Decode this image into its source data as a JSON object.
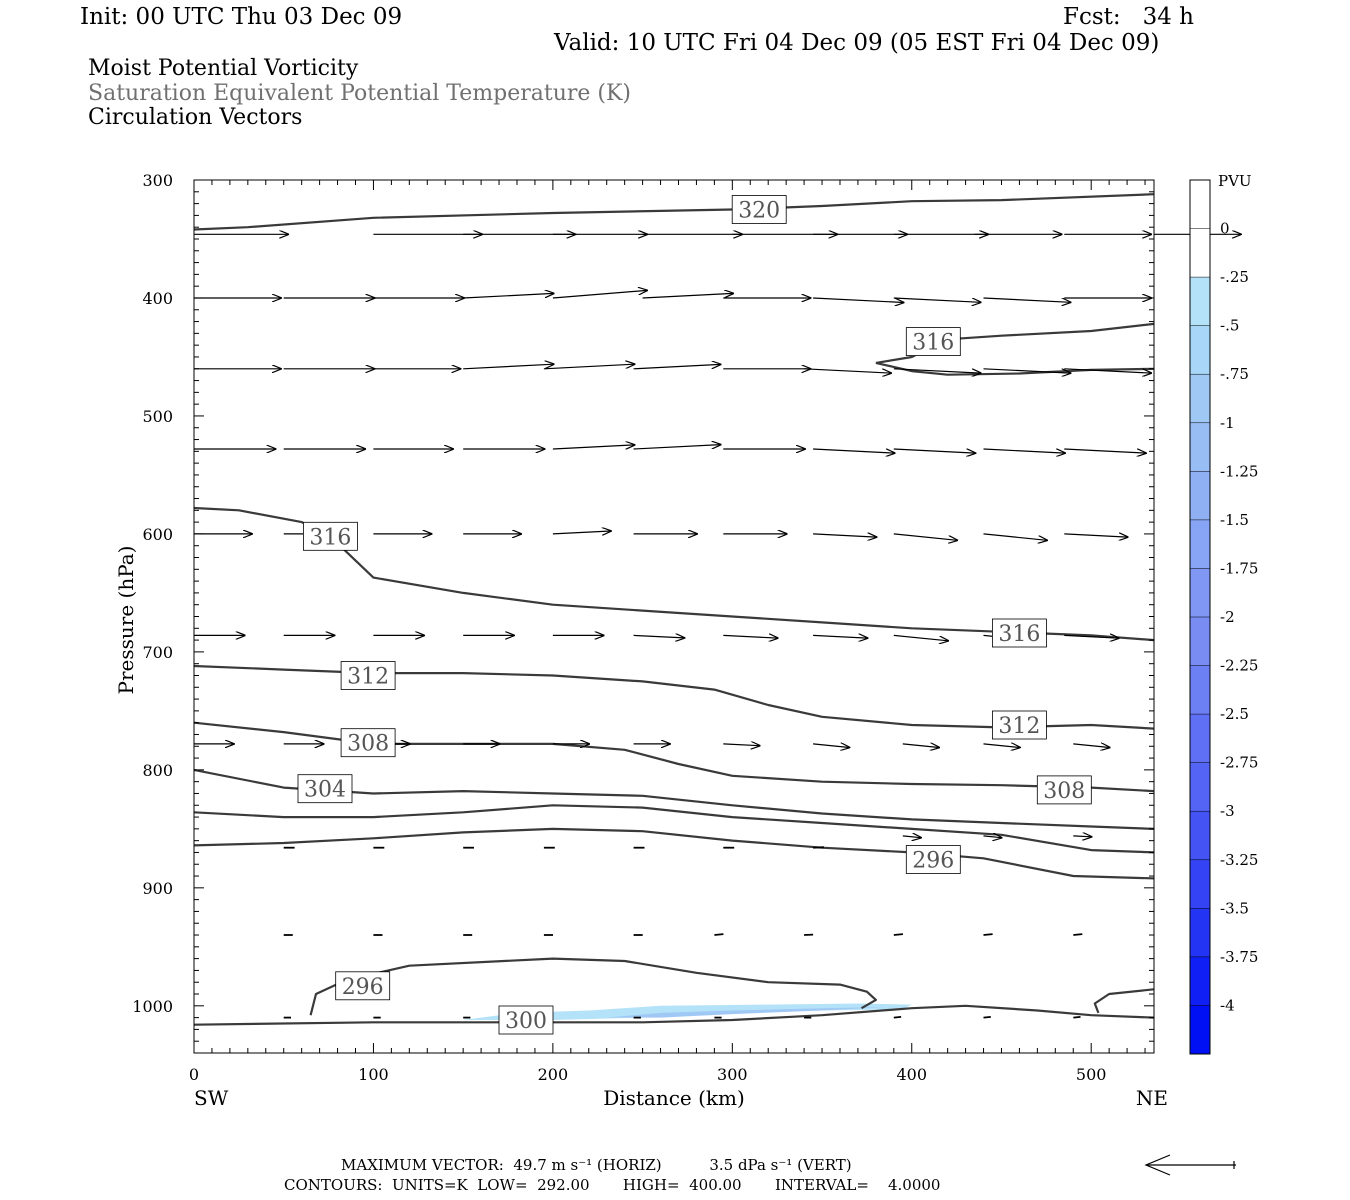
{
  "header": {
    "init": "Init: 00 UTC Thu 03 Dec 09",
    "fcst": "Fcst:   34 h",
    "valid": "Valid: 10 UTC Fri 04 Dec 09 (05 EST Fri 04 Dec 09)",
    "fields": [
      "Moist Potential Vorticity",
      "Saturation Equivalent Potential Temperature (K)",
      "Circulation Vectors"
    ]
  },
  "footer": {
    "max_vector": "MAXIMUM VECTOR:  49.7 m s⁻¹ (HORIZ)          3.5 dPa s⁻¹ (VERT)",
    "contours": "CONTOURS:  UNITS=K  LOW=  292.00       HIGH=  400.00       INTERVAL=    4.0000"
  },
  "colors": {
    "contour": "#3a3a3a",
    "pv_fill_light": "#b4e2f8",
    "pv_fill_mid": "#a0c8f4"
  },
  "chart_data": {
    "type": "cross-section",
    "xlabel": "Distance (km)",
    "ylabel": "Pressure (hPa)",
    "xlim": [
      0,
      535
    ],
    "ylim": [
      1040,
      300
    ],
    "x_ticks": [
      0,
      100,
      200,
      300,
      400,
      500
    ],
    "y_ticks": [
      300,
      400,
      500,
      600,
      700,
      800,
      900,
      1000
    ],
    "x_end_labels": {
      "left": "SW",
      "right": "NE"
    },
    "colorbar": {
      "unit": "PVU",
      "levels": [
        "0",
        "-.25",
        "-.5",
        "-.75",
        "-1",
        "-1.25",
        "-1.5",
        "-1.75",
        "-2",
        "-2.25",
        "-2.5",
        "-2.75",
        "-3",
        "-3.25",
        "-3.5",
        "-3.75",
        "-4"
      ],
      "colors": [
        "#ffffff",
        "#ffffff",
        "#b4e2f8",
        "#a8d6f8",
        "#a0c8f4",
        "#98bcf4",
        "#90b0f4",
        "#88a4f4",
        "#8098f4",
        "#788cf4",
        "#6c80f4",
        "#6070f4",
        "#5464f4",
        "#4454f4",
        "#3444f4",
        "#2434f4",
        "#1020f4",
        "#0010f4"
      ]
    },
    "contours": [
      {
        "points": [
          [
            0,
            342
          ],
          [
            30,
            340
          ],
          [
            100,
            332
          ],
          [
            200,
            328
          ],
          [
            300,
            325
          ],
          [
            350,
            322
          ],
          [
            400,
            318
          ],
          [
            450,
            317
          ],
          [
            535,
            312
          ]
        ]
      },
      {
        "points": [
          [
            0,
            578
          ],
          [
            25,
            580
          ],
          [
            60,
            590
          ],
          [
            80,
            608
          ],
          [
            100,
            637
          ],
          [
            150,
            650
          ],
          [
            200,
            660
          ],
          [
            250,
            665
          ],
          [
            300,
            670
          ],
          [
            350,
            675
          ],
          [
            400,
            680
          ],
          [
            450,
            683
          ],
          [
            500,
            686
          ],
          [
            535,
            690
          ]
        ]
      },
      {
        "points": [
          [
            380,
            455
          ],
          [
            400,
            450
          ],
          [
            420,
            435
          ],
          [
            450,
            432
          ],
          [
            500,
            428
          ],
          [
            535,
            422
          ]
        ]
      },
      {
        "points": [
          [
            380,
            455
          ],
          [
            400,
            462
          ],
          [
            420,
            465
          ],
          [
            460,
            464
          ],
          [
            500,
            461
          ],
          [
            535,
            460
          ]
        ]
      },
      {
        "points": [
          [
            0,
            712
          ],
          [
            50,
            715
          ],
          [
            100,
            718
          ],
          [
            150,
            718
          ],
          [
            200,
            720
          ],
          [
            250,
            725
          ],
          [
            290,
            732
          ],
          [
            320,
            745
          ],
          [
            350,
            755
          ],
          [
            400,
            762
          ],
          [
            450,
            764
          ],
          [
            500,
            762
          ],
          [
            535,
            765
          ]
        ]
      },
      {
        "points": [
          [
            0,
            760
          ],
          [
            50,
            768
          ],
          [
            100,
            778
          ],
          [
            150,
            778
          ],
          [
            200,
            778
          ],
          [
            240,
            783
          ],
          [
            270,
            795
          ],
          [
            300,
            805
          ],
          [
            350,
            810
          ],
          [
            400,
            812
          ],
          [
            450,
            813
          ],
          [
            500,
            815
          ],
          [
            535,
            818
          ]
        ]
      },
      {
        "points": [
          [
            0,
            800
          ],
          [
            50,
            815
          ],
          [
            100,
            820
          ],
          [
            150,
            818
          ],
          [
            200,
            820
          ],
          [
            250,
            822
          ],
          [
            300,
            830
          ],
          [
            350,
            837
          ],
          [
            400,
            842
          ],
          [
            450,
            845
          ],
          [
            500,
            848
          ],
          [
            535,
            850
          ]
        ]
      },
      {
        "points": [
          [
            0,
            836
          ],
          [
            50,
            840
          ],
          [
            100,
            840
          ],
          [
            150,
            836
          ],
          [
            200,
            830
          ],
          [
            250,
            832
          ],
          [
            300,
            840
          ],
          [
            350,
            845
          ],
          [
            400,
            850
          ],
          [
            450,
            855
          ],
          [
            500,
            868
          ],
          [
            535,
            870
          ]
        ]
      },
      {
        "points": [
          [
            0,
            864
          ],
          [
            50,
            862
          ],
          [
            100,
            858
          ],
          [
            150,
            853
          ],
          [
            200,
            850
          ],
          [
            250,
            852
          ],
          [
            300,
            860
          ],
          [
            350,
            866
          ],
          [
            400,
            870
          ],
          [
            440,
            875
          ],
          [
            490,
            890
          ],
          [
            535,
            892
          ]
        ]
      },
      {
        "points": [
          [
            65,
            1008
          ],
          [
            68,
            990
          ],
          [
            85,
            978
          ],
          [
            120,
            966
          ],
          [
            200,
            960
          ],
          [
            240,
            962
          ],
          [
            280,
            972
          ],
          [
            320,
            980
          ],
          [
            360,
            982
          ],
          [
            375,
            988
          ],
          [
            380,
            995
          ],
          [
            372,
            1002
          ]
        ]
      },
      {
        "points": [
          [
            0,
            1016
          ],
          [
            100,
            1014
          ],
          [
            150,
            1014
          ],
          [
            200,
            1014
          ],
          [
            250,
            1014
          ],
          [
            300,
            1012
          ],
          [
            350,
            1008
          ],
          [
            400,
            1002
          ],
          [
            430,
            1000
          ],
          [
            470,
            1004
          ],
          [
            500,
            1008
          ],
          [
            535,
            1010
          ]
        ]
      },
      {
        "points": [
          [
            504,
            1006
          ],
          [
            502,
            998
          ],
          [
            510,
            990
          ],
          [
            535,
            986
          ]
        ]
      }
    ],
    "contour_labels": [
      {
        "x": 315,
        "y": 325,
        "text": "320"
      },
      {
        "x": 412,
        "y": 437,
        "text": "316"
      },
      {
        "x": 76,
        "y": 602,
        "text": "316"
      },
      {
        "x": 460,
        "y": 684,
        "text": "316"
      },
      {
        "x": 97,
        "y": 720,
        "text": "312"
      },
      {
        "x": 460,
        "y": 762,
        "text": "312"
      },
      {
        "x": 97,
        "y": 777,
        "text": "308"
      },
      {
        "x": 485,
        "y": 817,
        "text": "308"
      },
      {
        "x": 73,
        "y": 816,
        "text": "304"
      },
      {
        "x": 412,
        "y": 876,
        "text": "296"
      },
      {
        "x": 94,
        "y": 983,
        "text": "296"
      },
      {
        "x": 185,
        "y": 1012,
        "text": "300"
      }
    ],
    "pv_region": {
      "outer": [
        [
          150,
          1012
        ],
        [
          180,
          1006
        ],
        [
          220,
          1004
        ],
        [
          260,
          1000
        ],
        [
          320,
          999
        ],
        [
          370,
          998
        ],
        [
          400,
          999
        ],
        [
          395,
          1003
        ],
        [
          350,
          1004
        ],
        [
          300,
          1006
        ],
        [
          250,
          1010
        ],
        [
          200,
          1012
        ]
      ],
      "inner": [
        [
          230,
          1010
        ],
        [
          260,
          1006
        ],
        [
          300,
          1004
        ],
        [
          350,
          1002
        ],
        [
          385,
          1001
        ],
        [
          350,
          1004
        ],
        [
          300,
          1007
        ],
        [
          260,
          1010
        ]
      ]
    },
    "vector_rows": [
      {
        "p": 346,
        "x": [
          0,
          100,
          150,
          200,
          250,
          300,
          345,
          390,
          435,
          485,
          535
        ],
        "u": [
          52,
          60,
          62,
          52,
          55,
          58,
          52,
          52,
          48,
          48,
          48
        ],
        "w": [
          0,
          0,
          0,
          0,
          0,
          0,
          0,
          0,
          0,
          0,
          0
        ]
      },
      {
        "p": 400,
        "x": [
          0,
          50,
          100,
          150,
          200,
          250,
          295,
          345,
          390,
          440,
          485
        ],
        "u": [
          48,
          50,
          50,
          50,
          52,
          50,
          48,
          50,
          48,
          48,
          48
        ],
        "w": [
          0,
          0,
          0,
          -0.05,
          -0.08,
          -0.05,
          0,
          0.05,
          0.05,
          0.05,
          0
        ]
      },
      {
        "p": 460,
        "x": [
          0,
          50,
          100,
          150,
          195,
          245,
          295,
          340,
          390,
          440,
          485
        ],
        "u": [
          48,
          50,
          48,
          50,
          50,
          48,
          48,
          48,
          48,
          48,
          48
        ],
        "w": [
          0,
          0,
          0,
          -0.05,
          -0.05,
          -0.05,
          0,
          0.05,
          0.05,
          0.05,
          0.05
        ]
      },
      {
        "p": 528,
        "x": [
          0,
          50,
          100,
          150,
          200,
          245,
          295,
          345,
          390,
          440,
          485
        ],
        "u": [
          45,
          45,
          44,
          45,
          45,
          48,
          45,
          45,
          45,
          45,
          45
        ],
        "w": [
          0,
          0,
          0,
          0,
          -0.05,
          -0.05,
          0,
          0.05,
          0.05,
          0.05,
          0.05
        ]
      },
      {
        "p": 600,
        "x": [
          0,
          50,
          100,
          150,
          200,
          245,
          295,
          345,
          390,
          440,
          485
        ],
        "u": [
          32,
          32,
          32,
          32,
          32,
          35,
          35,
          35,
          35,
          35,
          35
        ],
        "w": [
          0,
          0,
          0,
          0,
          -0.05,
          0,
          0,
          0.05,
          0.1,
          0.1,
          0.05
        ]
      },
      {
        "p": 686,
        "x": [
          0,
          50,
          100,
          150,
          200,
          245,
          295,
          345,
          390,
          440,
          485
        ],
        "u": [
          28,
          28,
          28,
          28,
          28,
          28,
          30,
          30,
          30,
          30,
          30
        ],
        "w": [
          0,
          0,
          0,
          0,
          0,
          0.05,
          0.05,
          0.05,
          0.1,
          0.1,
          0.05
        ]
      },
      {
        "p": 778,
        "x": [
          0,
          50,
          100,
          150,
          200,
          245,
          295,
          345,
          395,
          440,
          490
        ],
        "u": [
          22,
          22,
          20,
          20,
          20,
          20,
          20,
          20,
          20,
          20,
          20
        ],
        "w": [
          0,
          0,
          0,
          0,
          0,
          0,
          0.05,
          0.1,
          0.1,
          0.1,
          0.1
        ]
      },
      {
        "p": 856,
        "x": [
          395,
          440,
          490
        ],
        "u": [
          10,
          10,
          10
        ],
        "w": [
          0.1,
          0.1,
          0.05
        ]
      },
      {
        "p": 866,
        "x": [
          50,
          100,
          150,
          195,
          245,
          295,
          345
        ],
        "u": [
          6,
          6,
          6,
          6,
          6,
          6,
          6
        ],
        "w": [
          0,
          0,
          0,
          0,
          0,
          0,
          -0.05
        ]
      },
      {
        "p": 940,
        "x": [
          50,
          100,
          150,
          195,
          245,
          290,
          340,
          390,
          440,
          490
        ],
        "u": [
          5,
          5,
          5,
          5,
          5,
          5,
          5,
          5,
          5,
          5
        ],
        "w": [
          0,
          0,
          0,
          0,
          0,
          -0.1,
          -0.05,
          -0.1,
          -0.1,
          -0.1
        ]
      },
      {
        "p": 1010,
        "x": [
          50,
          100,
          150,
          195,
          245,
          290,
          340,
          390,
          440,
          490
        ],
        "u": [
          4,
          4,
          4,
          4,
          4,
          4,
          4,
          4,
          4,
          4
        ],
        "w": [
          0,
          0,
          0,
          0,
          0,
          0,
          0,
          -0.1,
          -0.1,
          -0.1
        ]
      }
    ],
    "reference_vector_m_s": 49.7
  }
}
